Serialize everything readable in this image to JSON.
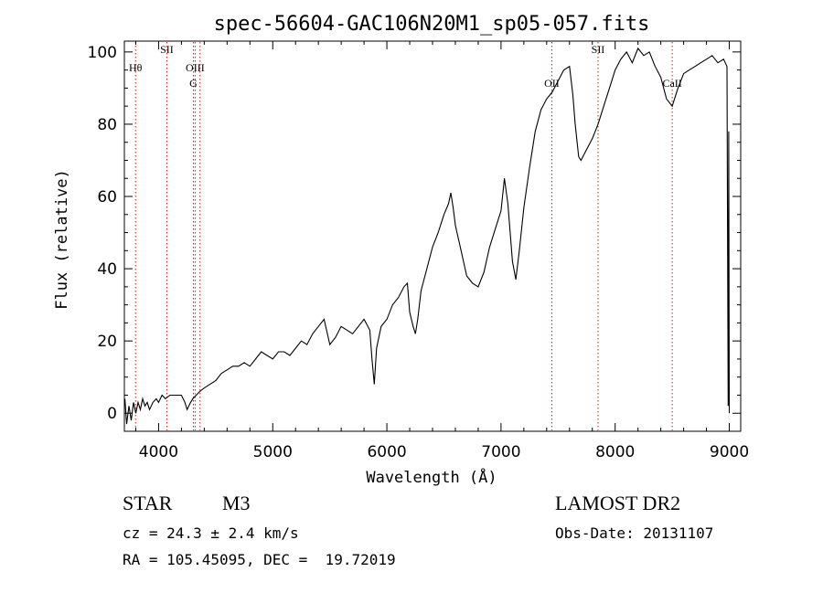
{
  "chart_data": {
    "type": "line",
    "title": "spec-56604-GAC106N20M1_sp05-057.fits",
    "xlabel": "Wavelength (Å)",
    "ylabel": "Flux (relative)",
    "xlim": [
      3700,
      9100
    ],
    "ylim": [
      -5,
      103
    ],
    "x_ticks": [
      4000,
      5000,
      6000,
      7000,
      8000,
      9000
    ],
    "y_ticks": [
      0,
      20,
      40,
      60,
      80,
      100
    ],
    "grid": false,
    "line_color": "#000000",
    "marker_line_color": "#cc2200",
    "spectral_lines": [
      {
        "label": "Hθ",
        "x": 3798,
        "row": 1,
        "style": "dotted"
      },
      {
        "label": "SII",
        "x": 4072,
        "row": 0,
        "style": "dotted"
      },
      {
        "label": "OIII",
        "x": 4320,
        "row": 1,
        "style": "dotted"
      },
      {
        "label": "G",
        "x": 4305,
        "row": 2,
        "style": "dotted"
      },
      {
        "label": "",
        "x": 4363,
        "row": 2,
        "style": "dotted"
      },
      {
        "label": "OII",
        "x": 7445,
        "row": 2,
        "style": "dotted"
      },
      {
        "label": "SII",
        "x": 7850,
        "row": 0,
        "style": "dotted"
      },
      {
        "label": "CaII",
        "x": 8500,
        "row": 2,
        "style": "dotted"
      }
    ],
    "series": [
      {
        "points": [
          [
            3705,
            4
          ],
          [
            3720,
            -3
          ],
          [
            3740,
            2
          ],
          [
            3760,
            -2
          ],
          [
            3780,
            3
          ],
          [
            3800,
            0
          ],
          [
            3820,
            3
          ],
          [
            3840,
            1
          ],
          [
            3860,
            4
          ],
          [
            3880,
            2
          ],
          [
            3900,
            3
          ],
          [
            3920,
            1
          ],
          [
            3950,
            3
          ],
          [
            3980,
            4
          ],
          [
            4000,
            3
          ],
          [
            4030,
            5
          ],
          [
            4060,
            4
          ],
          [
            4100,
            5
          ],
          [
            4150,
            5
          ],
          [
            4200,
            5
          ],
          [
            4230,
            3
          ],
          [
            4250,
            1
          ],
          [
            4280,
            3
          ],
          [
            4300,
            4
          ],
          [
            4330,
            5
          ],
          [
            4360,
            6
          ],
          [
            4400,
            7
          ],
          [
            4450,
            8
          ],
          [
            4500,
            9
          ],
          [
            4550,
            11
          ],
          [
            4600,
            12
          ],
          [
            4650,
            13
          ],
          [
            4700,
            13
          ],
          [
            4750,
            14
          ],
          [
            4800,
            13
          ],
          [
            4850,
            15
          ],
          [
            4900,
            17
          ],
          [
            4950,
            16
          ],
          [
            5000,
            15
          ],
          [
            5050,
            17
          ],
          [
            5100,
            17
          ],
          [
            5150,
            16
          ],
          [
            5200,
            18
          ],
          [
            5250,
            20
          ],
          [
            5300,
            19
          ],
          [
            5350,
            22
          ],
          [
            5400,
            24
          ],
          [
            5450,
            26
          ],
          [
            5500,
            19
          ],
          [
            5550,
            21
          ],
          [
            5600,
            24
          ],
          [
            5650,
            23
          ],
          [
            5700,
            22
          ],
          [
            5750,
            24
          ],
          [
            5800,
            26
          ],
          [
            5850,
            23
          ],
          [
            5870,
            15
          ],
          [
            5890,
            8
          ],
          [
            5910,
            18
          ],
          [
            5950,
            24
          ],
          [
            6000,
            26
          ],
          [
            6050,
            30
          ],
          [
            6100,
            32
          ],
          [
            6150,
            35
          ],
          [
            6180,
            36
          ],
          [
            6200,
            28
          ],
          [
            6230,
            24
          ],
          [
            6250,
            22
          ],
          [
            6270,
            26
          ],
          [
            6300,
            34
          ],
          [
            6350,
            40
          ],
          [
            6400,
            46
          ],
          [
            6450,
            50
          ],
          [
            6500,
            55
          ],
          [
            6540,
            58
          ],
          [
            6560,
            61
          ],
          [
            6580,
            57
          ],
          [
            6600,
            52
          ],
          [
            6650,
            45
          ],
          [
            6700,
            38
          ],
          [
            6750,
            36
          ],
          [
            6800,
            35
          ],
          [
            6850,
            39
          ],
          [
            6900,
            46
          ],
          [
            6950,
            51
          ],
          [
            7000,
            56
          ],
          [
            7030,
            65
          ],
          [
            7060,
            58
          ],
          [
            7100,
            42
          ],
          [
            7130,
            37
          ],
          [
            7160,
            45
          ],
          [
            7200,
            57
          ],
          [
            7250,
            68
          ],
          [
            7300,
            78
          ],
          [
            7350,
            84
          ],
          [
            7400,
            87
          ],
          [
            7450,
            89
          ],
          [
            7500,
            92
          ],
          [
            7550,
            95
          ],
          [
            7600,
            96
          ],
          [
            7630,
            88
          ],
          [
            7650,
            80
          ],
          [
            7680,
            71
          ],
          [
            7700,
            70
          ],
          [
            7750,
            73
          ],
          [
            7800,
            76
          ],
          [
            7850,
            80
          ],
          [
            7900,
            85
          ],
          [
            7950,
            90
          ],
          [
            8000,
            95
          ],
          [
            8050,
            98
          ],
          [
            8100,
            100
          ],
          [
            8150,
            97
          ],
          [
            8200,
            101
          ],
          [
            8250,
            99
          ],
          [
            8300,
            100
          ],
          [
            8350,
            96
          ],
          [
            8400,
            93
          ],
          [
            8450,
            87
          ],
          [
            8500,
            85
          ],
          [
            8550,
            90
          ],
          [
            8600,
            94
          ],
          [
            8650,
            95
          ],
          [
            8700,
            96
          ],
          [
            8750,
            97
          ],
          [
            8800,
            98
          ],
          [
            8850,
            99
          ],
          [
            8900,
            97
          ],
          [
            8950,
            98
          ],
          [
            8980,
            96
          ],
          [
            8990,
            2
          ],
          [
            8995,
            78
          ],
          [
            9000,
            0
          ]
        ]
      }
    ]
  },
  "info": {
    "object_type": "STAR",
    "subclass": "M3",
    "survey": "LAMOST DR2",
    "redshift": "cz = 24.3 ± 2.4 km/s",
    "obs_date": "Obs-Date: 20131107",
    "coords": "RA = 105.45095, DEC =  19.72019"
  }
}
